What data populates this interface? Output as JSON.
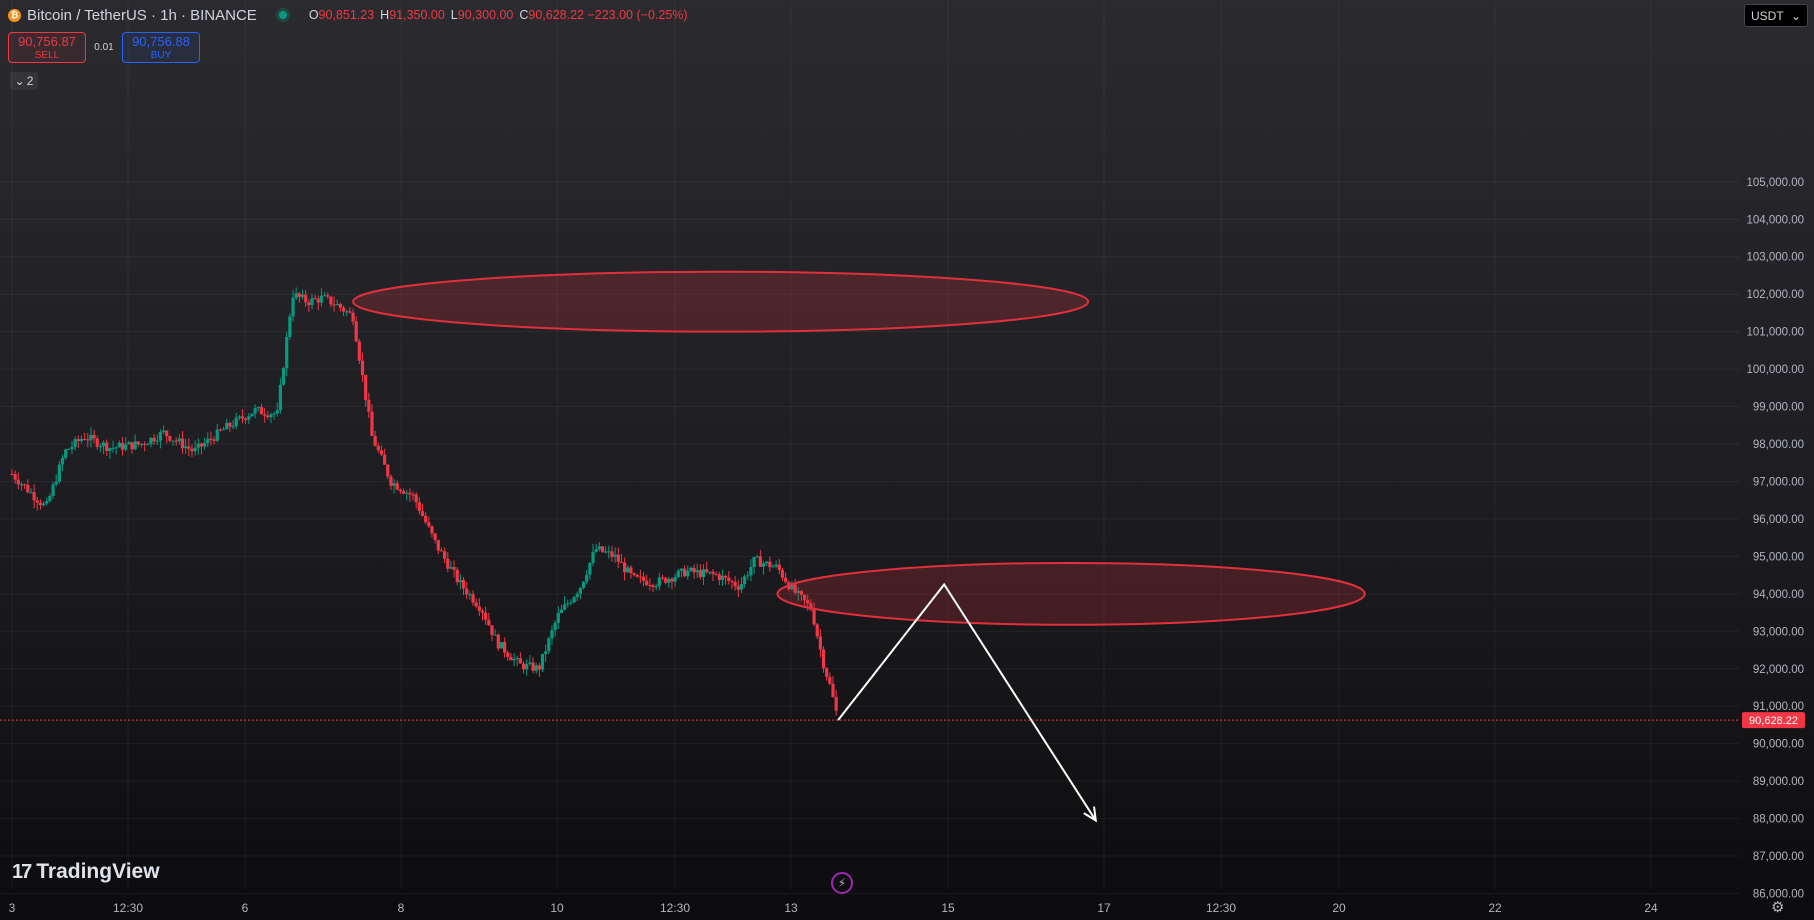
{
  "header": {
    "coin_icon": "bitcoin-icon",
    "symbol": "Bitcoin / TetherUS · 1h · BINANCE",
    "ohlc": [
      {
        "key": "O",
        "value": "90,851.23"
      },
      {
        "key": "H",
        "value": "91,350.00"
      },
      {
        "key": "L",
        "value": "90,300.00"
      },
      {
        "key": "C",
        "value": "90,628.22 −223.00 (−0.25%)"
      }
    ]
  },
  "trade": {
    "sell_price": "90,756.87",
    "sell_label": "SELL",
    "quantity": "0.01",
    "buy_price": "90,756.88",
    "buy_label": "BUY"
  },
  "indicators_toggle": {
    "count": "2"
  },
  "currency": {
    "label": "USDT"
  },
  "logo": {
    "text": "TradingView"
  },
  "colors": {
    "up": "#089981",
    "down": "#f23645",
    "zone": "#e0303c",
    "arrow": "#ffffff"
  },
  "chart_data": {
    "type": "candlestick",
    "symbol": "BTCUSDT",
    "interval": "1h",
    "x_ticks": [
      "3",
      "12:30",
      "6",
      "8",
      "10",
      "12:30",
      "13",
      "15",
      "17",
      "12:30",
      "20",
      "22",
      "24"
    ],
    "y_ticks": [
      "105,000.00",
      "104,000.00",
      "103,000.00",
      "102,000.00",
      "101,000.00",
      "100,000.00",
      "99,000.00",
      "98,000.00",
      "97,000.00",
      "96,000.00",
      "95,000.00",
      "94,000.00",
      "93,000.00",
      "92,000.00",
      "91,000.00",
      "90,000.00",
      "89,000.00",
      "88,000.00",
      "87,000.00",
      "86,000.00"
    ],
    "ylim": [
      85700,
      106300
    ],
    "last_price": 90628.22,
    "last_price_label": "90,628.22",
    "path": [
      [
        3.0,
        97200
      ],
      [
        3.2,
        96800
      ],
      [
        3.45,
        96300
      ],
      [
        3.7,
        97800
      ],
      [
        3.95,
        98200
      ],
      [
        4.3,
        97900
      ],
      [
        4.7,
        98000
      ],
      [
        5.0,
        98300
      ],
      [
        5.4,
        97800
      ],
      [
        5.8,
        98400
      ],
      [
        6.2,
        98900
      ],
      [
        6.5,
        98800
      ],
      [
        6.7,
        102000
      ],
      [
        6.9,
        101800
      ],
      [
        7.1,
        101900
      ],
      [
        7.3,
        101700
      ],
      [
        7.5,
        101400
      ],
      [
        7.75,
        98200
      ],
      [
        8.0,
        97000
      ],
      [
        8.3,
        96600
      ],
      [
        8.6,
        95300
      ],
      [
        8.9,
        94300
      ],
      [
        9.2,
        93600
      ],
      [
        9.4,
        92700
      ],
      [
        9.7,
        92100
      ],
      [
        9.95,
        92000
      ],
      [
        10.2,
        93400
      ],
      [
        10.5,
        94200
      ],
      [
        10.7,
        95200
      ],
      [
        10.95,
        95000
      ],
      [
        11.2,
        94400
      ],
      [
        11.5,
        94300
      ],
      [
        11.9,
        94600
      ],
      [
        12.3,
        94500
      ],
      [
        12.6,
        94200
      ],
      [
        12.8,
        94900
      ],
      [
        13.1,
        94700
      ],
      [
        13.3,
        94100
      ],
      [
        13.55,
        93600
      ],
      [
        13.7,
        92200
      ],
      [
        13.8,
        91500
      ],
      [
        13.9,
        90628.22
      ]
    ],
    "zones": [
      {
        "x_from": 7.5,
        "x_to": 17.2,
        "y_center": 101800,
        "y_height": 1600
      },
      {
        "x_from": 13.1,
        "x_to": 20.85,
        "y_center": 94000,
        "y_height": 1650
      }
    ],
    "projection": [
      [
        13.9,
        90628
      ],
      [
        15.3,
        94250
      ],
      [
        17.3,
        87950
      ]
    ]
  }
}
